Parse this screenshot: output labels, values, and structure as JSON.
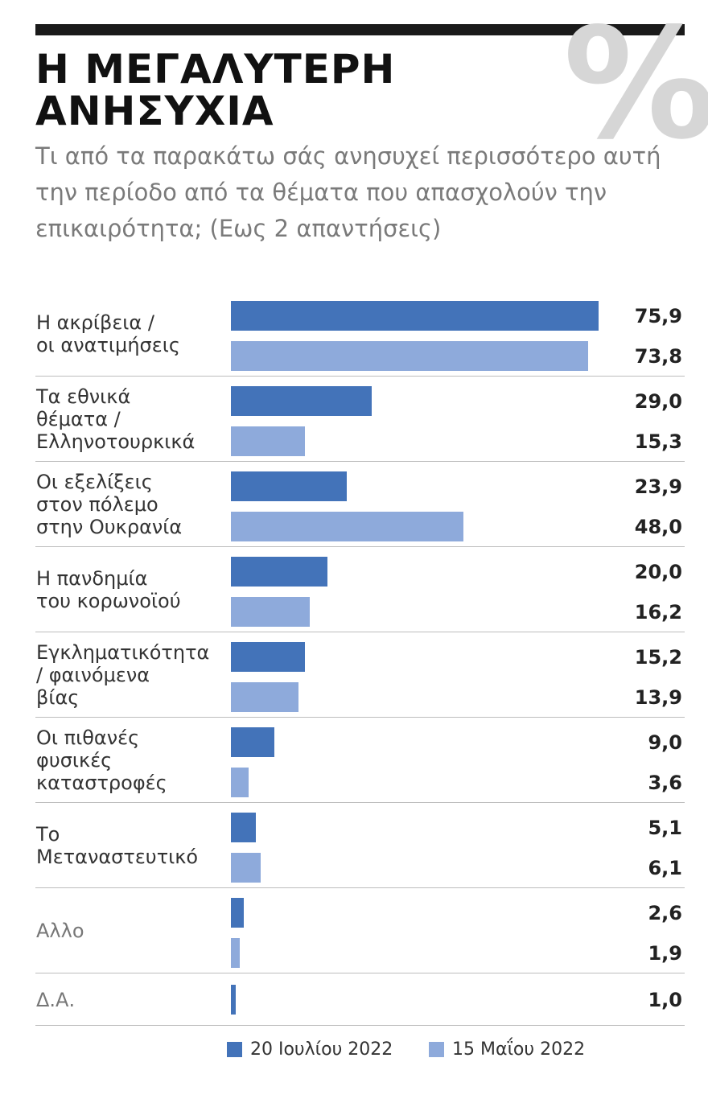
{
  "chart_data": {
    "type": "bar",
    "orientation": "horizontal",
    "title": "Η ΜΕΓΑΛΥΤΕΡΗ\nΑΝΗΣΥΧΙΑ",
    "watermark": "%",
    "subtitle": "Τι από τα παρακάτω σάς ανησυχεί περισσότερο αυτή την περίοδο από τα θέματα που απασχολούν την επικαιρότητα; (Εως 2 απαντήσεις)",
    "categories": [
      "Η ακρίβεια /\nοι ανατιμήσεις",
      "Τα εθνικά\nθέματα /\nΕλληνοτουρκικά",
      "Οι εξελίξεις\nστον πόλεμο\nστην Ουκρανία",
      "Η πανδημία\nτου κορωνοϊού",
      "Εγκληματικότητα\n/ φαινόμενα\nβίας",
      "Οι πιθανές\nφυσικές\nκαταστροφές",
      "Το\nΜεταναστευτικό",
      "Αλλο",
      "Δ.Α."
    ],
    "series": [
      {
        "name": "20 Ιουλίου 2022",
        "color": "#4373b9",
        "values": [
          75.9,
          29.0,
          23.9,
          20.0,
          15.2,
          9.0,
          5.1,
          2.6,
          1.0
        ],
        "value_labels": [
          "75,9",
          "29,0",
          "23,9",
          "20,0",
          "15,2",
          "9,0",
          "5,1",
          "2,6",
          "1,0"
        ]
      },
      {
        "name": "15 Μαΐου 2022",
        "color": "#8eaadb",
        "values": [
          73.8,
          15.3,
          48.0,
          16.2,
          13.9,
          3.6,
          6.1,
          1.9,
          null
        ],
        "value_labels": [
          "73,8",
          "15,3",
          "48,0",
          "16,2",
          "13,9",
          "3,6",
          "6,1",
          "1,9",
          null
        ]
      }
    ]
  }
}
